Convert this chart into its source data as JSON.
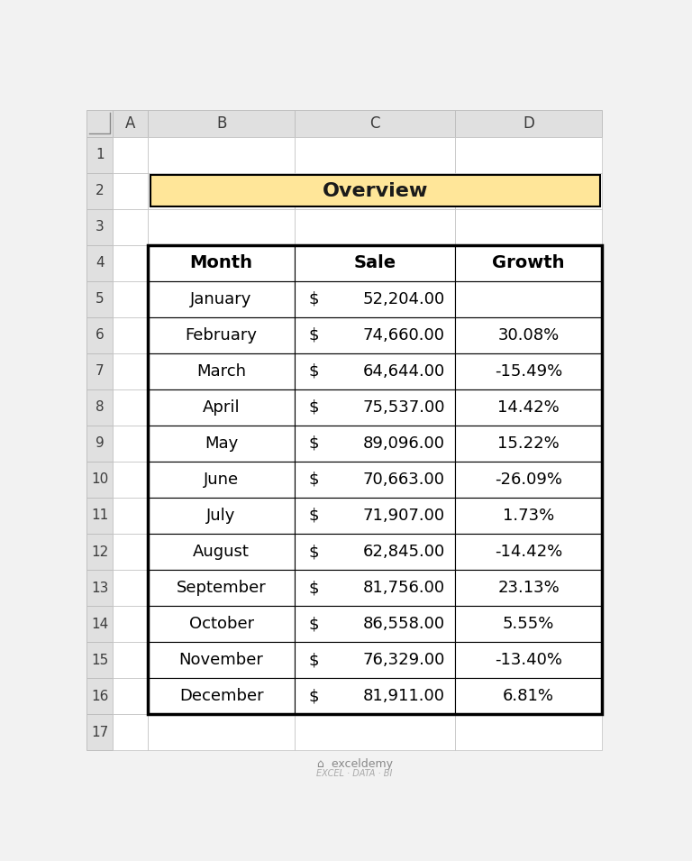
{
  "title": "Overview",
  "title_bg": "#FFE699",
  "title_border": "#000000",
  "header_row": [
    "Month",
    "Sale",
    "Growth"
  ],
  "months": [
    "January",
    "February",
    "March",
    "April",
    "May",
    "June",
    "July",
    "August",
    "September",
    "October",
    "November",
    "December"
  ],
  "sales": [
    "52,204.00",
    "74,660.00",
    "64,644.00",
    "75,537.00",
    "89,096.00",
    "70,663.00",
    "71,907.00",
    "62,845.00",
    "81,756.00",
    "86,558.00",
    "76,329.00",
    "81,911.00"
  ],
  "growth": [
    "",
    "30.08%",
    "-15.49%",
    "14.42%",
    "15.22%",
    "-26.09%",
    "1.73%",
    "-14.42%",
    "23.13%",
    "5.55%",
    "-13.40%",
    "6.81%"
  ],
  "spreadsheet_bg": "#F2F2F2",
  "cell_bg": "#FFFFFF",
  "header_bg": "#E0E0E0",
  "border_color": "#BFBFBF",
  "table_border_color": "#000000",
  "watermark_color": "#A0A0A0"
}
